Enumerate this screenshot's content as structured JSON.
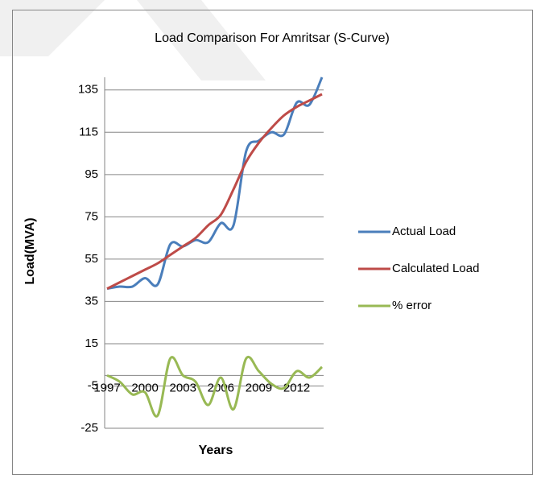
{
  "chart_data": {
    "type": "line",
    "title": "Load Comparison For Amritsar (S-Curve)",
    "x_label": "Years",
    "y_label": "Load(MVA)",
    "categories": [
      "1997",
      null,
      null,
      "2000",
      null,
      null,
      "2003",
      null,
      null,
      "2006",
      null,
      null,
      "2009",
      null,
      null,
      "2012",
      null,
      null
    ],
    "series": [
      {
        "name": "Actual Load",
        "color": "#4a7ebb",
        "values": [
          41,
          42,
          42,
          46,
          43,
          62,
          61,
          64,
          63,
          72,
          71,
          106,
          111,
          115,
          114,
          129,
          128,
          141
        ]
      },
      {
        "name": "Calculated Load",
        "color": "#be4b48",
        "values": [
          41,
          44,
          47,
          50,
          53,
          57,
          61,
          65,
          71,
          76,
          88,
          101,
          110,
          117,
          123,
          127,
          130,
          133
        ]
      },
      {
        "name": "% error",
        "color": "#98b954",
        "values": [
          0,
          -3,
          -9,
          -8,
          -19,
          8,
          0,
          -3,
          -14,
          -1,
          -16,
          8,
          2,
          -4,
          -6,
          2,
          -1,
          4
        ]
      }
    ],
    "ylim": [
      -25,
      141
    ],
    "yticks": [
      -25,
      -5,
      15,
      35,
      55,
      75,
      95,
      115,
      135
    ],
    "grid": true,
    "legend": "right"
  }
}
